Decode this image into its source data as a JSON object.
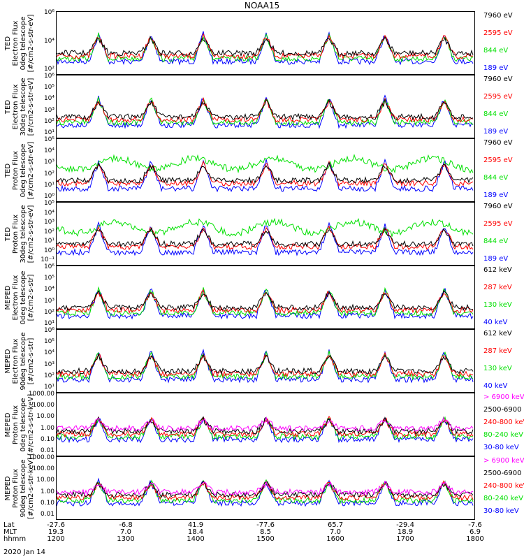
{
  "page_title": "NOAA15",
  "date_label": "2020 Jan 14",
  "axis_rows": {
    "lat": {
      "label": "Lat",
      "values": [
        "-27.6",
        "-6.8",
        "41.9",
        "-77.6",
        "65.7",
        "-29.4",
        "-7.6"
      ]
    },
    "mlt": {
      "label": "MLT",
      "values": [
        "19.3",
        "7.0",
        "18.4",
        "8.5",
        "7.0",
        "18.9",
        "6.9"
      ]
    },
    "hhmm": {
      "label": "hhmm",
      "values": [
        "1200",
        "1300",
        "1400",
        "1500",
        "1600",
        "1700",
        "1800"
      ]
    }
  },
  "colors": {
    "black": "#000000",
    "blue": "#0000ff",
    "green": "#00e000",
    "red": "#ff0000",
    "magenta": "#ff00ff"
  },
  "chart_data": [
    {
      "type": "line",
      "ylabel": [
        "TED",
        "Electron Flux",
        "0deg telescope",
        "[#/cm2-s-str-eV]"
      ],
      "yscale": "log",
      "ylim": [
        1,
        1000000
      ],
      "ytick_labels": [
        "10⁶",
        "10⁴",
        "10²"
      ],
      "series": [
        {
          "name": "7960 eV",
          "color": "#000000"
        },
        {
          "name": "2595 eV",
          "color": "#ff0000"
        },
        {
          "name": "844 eV",
          "color": "#00e000"
        },
        {
          "name": "189 eV",
          "color": "#0000ff"
        }
      ]
    },
    {
      "type": "line",
      "ylabel": [
        "TED",
        "Electron Flux",
        "30deg telescope",
        "[#/cm2-s-str-eV]"
      ],
      "yscale": "log",
      "ylim": [
        1,
        1000000
      ],
      "ytick_labels": [
        "10⁶",
        "10⁵",
        "10⁴",
        "10³",
        "10²",
        "10¹"
      ],
      "series": [
        {
          "name": "7960 eV",
          "color": "#000000"
        },
        {
          "name": "2595 eV",
          "color": "#ff0000"
        },
        {
          "name": "844 eV",
          "color": "#00e000"
        },
        {
          "name": "189 eV",
          "color": "#0000ff"
        }
      ]
    },
    {
      "type": "line",
      "ylabel": [
        "TED",
        "Proton Flux",
        "0deg telescope",
        "[#/cm2-s-str-eV]"
      ],
      "yscale": "log",
      "ylim": [
        1,
        100000
      ],
      "ytick_labels": [
        "10⁵",
        "10⁴",
        "10³",
        "10²",
        "10¹",
        "10⁰"
      ],
      "series": [
        {
          "name": "7960 eV",
          "color": "#000000"
        },
        {
          "name": "2595 eV",
          "color": "#ff0000"
        },
        {
          "name": "844 eV",
          "color": "#00e000"
        },
        {
          "name": "189 eV",
          "color": "#0000ff"
        }
      ]
    },
    {
      "type": "line",
      "ylabel": [
        "TED",
        "Proton Flux",
        "30deg telescope",
        "[#/cm2-s-str-eV]"
      ],
      "yscale": "log",
      "ylim": [
        0.1,
        100000
      ],
      "ytick_labels": [
        "10⁵",
        "10⁴",
        "10³",
        "10²",
        "10¹",
        "10⁰",
        "10⁻¹"
      ],
      "series": [
        {
          "name": "7960 eV",
          "color": "#000000"
        },
        {
          "name": "2595 eV",
          "color": "#ff0000"
        },
        {
          "name": "844 eV",
          "color": "#00e000"
        },
        {
          "name": "189 eV",
          "color": "#0000ff"
        }
      ]
    },
    {
      "type": "line",
      "ylabel": [
        "MEPED",
        "Electron Flux",
        "0deg telescope",
        "[#/cm2-s-str]"
      ],
      "yscale": "log",
      "ylim": [
        10,
        1000000
      ],
      "ytick_labels": [
        "10⁶",
        "10⁵",
        "10⁴",
        "10³",
        "10²",
        "10¹"
      ],
      "series": [
        {
          "name": "612 keV",
          "color": "#000000"
        },
        {
          "name": "287 keV",
          "color": "#ff0000"
        },
        {
          "name": "130 keV",
          "color": "#00e000"
        },
        {
          "name": "40 keV",
          "color": "#0000ff"
        }
      ]
    },
    {
      "type": "line",
      "ylabel": [
        "MEPED",
        "Electron Flux",
        "90deg telescope",
        "[#/cm2-s-str]"
      ],
      "yscale": "log",
      "ylim": [
        10,
        1000000
      ],
      "ytick_labels": [
        "10⁶",
        "10⁵",
        "10⁴",
        "10³",
        "10²",
        "10¹"
      ],
      "series": [
        {
          "name": "612 keV",
          "color": "#000000"
        },
        {
          "name": "287 keV",
          "color": "#ff0000"
        },
        {
          "name": "130 keV",
          "color": "#00e000"
        },
        {
          "name": "40 keV",
          "color": "#0000ff"
        }
      ]
    },
    {
      "type": "line",
      "ylabel": [
        "MEPED",
        "Proton Flux",
        "0deg telescope",
        "[#/cm2-s-str-keV]"
      ],
      "yscale": "log",
      "ylim": [
        0.01,
        1000
      ],
      "ytick_labels": [
        "1000.00",
        "100.00",
        "10.00",
        "1.00",
        "0.10",
        "0.01"
      ],
      "series": [
        {
          "name": "> 6900 keV",
          "color": "#ff00ff"
        },
        {
          "name": "2500-6900",
          "color": "#000000"
        },
        {
          "name": "240-800 keV",
          "color": "#ff0000"
        },
        {
          "name": "80-240 keV",
          "color": "#00e000"
        },
        {
          "name": "30-80 keV",
          "color": "#0000ff"
        }
      ]
    },
    {
      "type": "line",
      "ylabel": [
        "MEPED",
        "Proton Flux",
        "90deg telescope",
        "[#/cm2-s-str-keV]"
      ],
      "yscale": "log",
      "ylim": [
        0.01,
        1000
      ],
      "ytick_labels": [
        "1000.00",
        "100.00",
        "10.00",
        "1.00",
        "0.10",
        "0.01"
      ],
      "series": [
        {
          "name": "> 6900 keV",
          "color": "#ff00ff"
        },
        {
          "name": "2500-6900",
          "color": "#000000"
        },
        {
          "name": "240-800 keV",
          "color": "#ff0000"
        },
        {
          "name": "80-240 keV",
          "color": "#00e000"
        },
        {
          "name": "30-80 keV",
          "color": "#0000ff"
        }
      ]
    }
  ]
}
